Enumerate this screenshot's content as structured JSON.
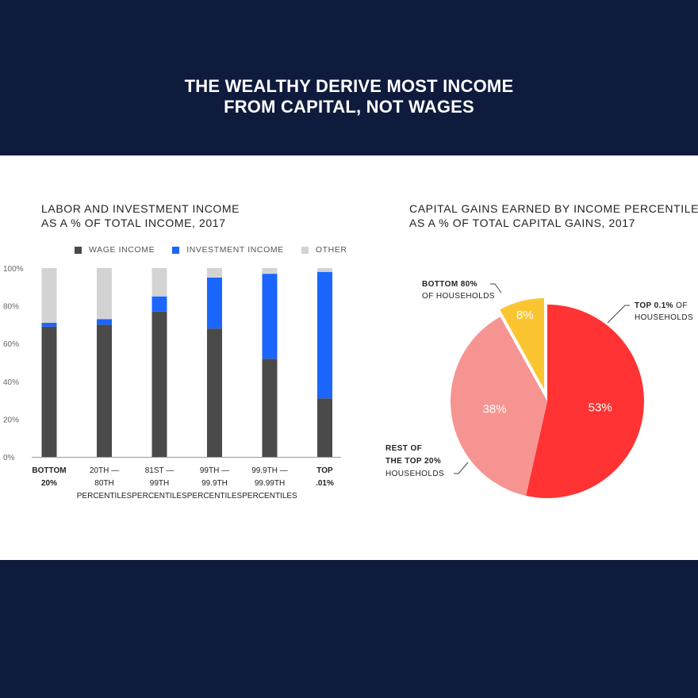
{
  "header": {
    "title_line1": "THE WEALTHY DERIVE MOST INCOME",
    "title_line2": "FROM CAPITAL, NOT WAGES"
  },
  "bar_chart": {
    "title_line1": "LABOR AND INVESTMENT INCOME",
    "title_line2": "AS A % OF TOTAL INCOME, 2017"
  },
  "pie_chart": {
    "title_line1": "CAPITAL GAINS EARNED BY INCOME PERCENTILE",
    "title_line2": "AS A % OF TOTAL CAPITAL GAINS, 2017"
  },
  "colors": {
    "wage": "#4a4a4a",
    "investment": "#1a66ff",
    "other": "#d3d3d3",
    "top01": "#ff3333",
    "rest20": "#f69491",
    "bottom80": "#fbc531",
    "navy": "#0f1b3d"
  },
  "chart_data": [
    {
      "type": "bar",
      "stacked": true,
      "title": "LABOR AND INVESTMENT INCOME AS A % OF TOTAL INCOME, 2017",
      "categories": [
        {
          "lines": [
            "BOTTOM",
            "20%"
          ],
          "bold": true
        },
        {
          "lines": [
            "20TH —",
            "80TH",
            "PERCENTILES"
          ],
          "bold": false
        },
        {
          "lines": [
            "81ST —",
            "99TH",
            "PERCENTILES"
          ],
          "bold": false
        },
        {
          "lines": [
            "99TH —",
            "99.9TH",
            "PERCENTILES"
          ],
          "bold": false
        },
        {
          "lines": [
            "99.9TH —",
            "99.99TH",
            "PERCENTILES"
          ],
          "bold": false
        },
        {
          "lines": [
            "TOP",
            ".01%"
          ],
          "bold": true
        }
      ],
      "series": [
        {
          "name": "WAGE INCOME",
          "color": "#4a4a4a",
          "values": [
            69,
            70,
            77,
            68,
            52,
            31
          ]
        },
        {
          "name": "INVESTMENT INCOME",
          "color": "#1a66ff",
          "values": [
            2,
            3,
            8,
            27,
            45,
            67
          ]
        },
        {
          "name": "OTHER",
          "color": "#d3d3d3",
          "values": [
            29,
            27,
            15,
            5,
            3,
            2
          ]
        }
      ],
      "yticks": [
        "100%",
        "80%",
        "60%",
        "40%",
        "20%",
        "0%"
      ],
      "ylim": [
        0,
        100
      ],
      "grid": false,
      "legend": "top"
    },
    {
      "type": "pie",
      "title": "CAPITAL GAINS EARNED BY INCOME PERCENTILE AS A % OF TOTAL CAPITAL GAINS, 2017",
      "slices": [
        {
          "label_bold": "TOP 0.1%",
          "label_rest": " OF",
          "label_line2": "HOUSEHOLDS",
          "value": 53,
          "pct_label": "53%",
          "color": "#ff3333"
        },
        {
          "label_bold": "REST OF",
          "label_bold2": "THE TOP 20%",
          "label_line2": "HOUSEHOLDS",
          "value": 38,
          "pct_label": "38%",
          "color": "#f69491"
        },
        {
          "label_bold": "BOTTOM 80%",
          "label_line2": "OF HOUSEHOLDS",
          "value": 8,
          "pct_label": "8%",
          "color": "#fbc531",
          "exploded": true
        }
      ]
    }
  ]
}
